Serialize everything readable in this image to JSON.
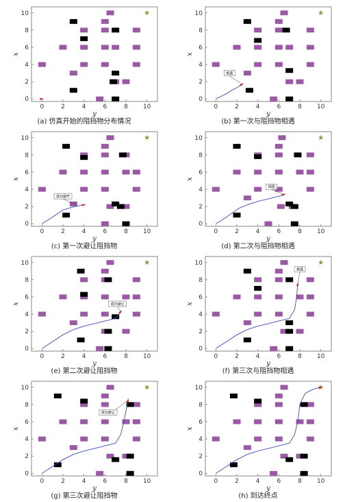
{
  "colors": {
    "obstacle_static": "#9b59a5",
    "obstacle_dynamic": "#000000",
    "path": "#3b4cc0",
    "robot": "#e02020",
    "goal": "#7fa63a"
  },
  "chart_data": [
    {
      "type": "scatter",
      "caption": "(a) 仿真开始的阻挡物分布情况",
      "xlabel": "y",
      "ylabel": "x",
      "xlim": [
        -1,
        11
      ],
      "ylim": [
        -0.3,
        10.7
      ],
      "xticks": [
        0,
        2,
        4,
        6,
        8,
        10
      ],
      "yticks": [
        0,
        2,
        4,
        6,
        8,
        10
      ],
      "start": [
        0,
        0
      ],
      "goal": [
        10,
        10
      ],
      "static_obstacles": [
        [
          0,
          4
        ],
        [
          2,
          6
        ],
        [
          3,
          3
        ],
        [
          4,
          8
        ],
        [
          4,
          6
        ],
        [
          4,
          4
        ],
        [
          6,
          9
        ],
        [
          6,
          8
        ],
        [
          6,
          6
        ],
        [
          6,
          4
        ],
        [
          6.5,
          10
        ],
        [
          7,
          6
        ],
        [
          8,
          2
        ],
        [
          9,
          8
        ],
        [
          9,
          6
        ],
        [
          9,
          4
        ],
        [
          7,
          2
        ],
        [
          5.5,
          0
        ]
      ],
      "dynamic_obstacles": [
        [
          3,
          9
        ],
        [
          4,
          7
        ],
        [
          3,
          1
        ],
        [
          7,
          8
        ],
        [
          7,
          3
        ],
        [
          6.8,
          2
        ],
        [
          7,
          0
        ]
      ],
      "path": [
        [
          0,
          0
        ]
      ],
      "annotation": null
    },
    {
      "type": "scatter",
      "caption": "(b) 第一次与阻挡物相遇",
      "xlabel": "y",
      "ylabel": "x",
      "xlim": [
        -1,
        11
      ],
      "ylim": [
        -0.3,
        10.7
      ],
      "xticks": [
        0,
        2,
        4,
        6,
        8,
        10
      ],
      "yticks": [
        0,
        2,
        4,
        6,
        8,
        10
      ],
      "start": [
        0,
        0
      ],
      "goal": [
        10,
        10
      ],
      "static_obstacles": [
        [
          0,
          4
        ],
        [
          2,
          6
        ],
        [
          3,
          3
        ],
        [
          4,
          8
        ],
        [
          4,
          6
        ],
        [
          4,
          4
        ],
        [
          6,
          9
        ],
        [
          6,
          8
        ],
        [
          6,
          6
        ],
        [
          6,
          4
        ],
        [
          6.5,
          10
        ],
        [
          7,
          6
        ],
        [
          7,
          2
        ],
        [
          8,
          2
        ],
        [
          9,
          8
        ],
        [
          9,
          6
        ],
        [
          9,
          4
        ],
        [
          5.5,
          0
        ]
      ],
      "dynamic_obstacles": [
        [
          3,
          9
        ],
        [
          4,
          6.8
        ],
        [
          3.2,
          1
        ],
        [
          6.7,
          8
        ],
        [
          7,
          3.3
        ],
        [
          7,
          0
        ]
      ],
      "path": [
        [
          0,
          0
        ],
        [
          0.5,
          0.3
        ],
        [
          1,
          0.6
        ],
        [
          1.5,
          1
        ],
        [
          2,
          1.3
        ],
        [
          2.5,
          1.7
        ]
      ],
      "annotation": {
        "text": "相遇",
        "at": [
          2.5,
          1.7
        ],
        "box": [
          1.3,
          3
        ]
      }
    },
    {
      "type": "scatter",
      "caption": "(c) 第一次避让阻挡物",
      "xlabel": "y",
      "ylabel": "x",
      "xlim": [
        -1,
        11
      ],
      "ylim": [
        -0.3,
        10.7
      ],
      "xticks": [
        0,
        2,
        4,
        6,
        8,
        10
      ],
      "yticks": [
        0,
        2,
        4,
        6,
        8,
        10
      ],
      "start": [
        0,
        0
      ],
      "goal": [
        10,
        10
      ],
      "static_obstacles": [
        [
          0,
          4
        ],
        [
          2,
          6
        ],
        [
          3,
          2.3
        ],
        [
          4,
          8
        ],
        [
          4,
          6
        ],
        [
          4,
          4
        ],
        [
          6,
          9
        ],
        [
          6,
          8
        ],
        [
          6,
          6
        ],
        [
          6,
          4
        ],
        [
          6.5,
          10
        ],
        [
          8,
          6
        ],
        [
          8,
          8
        ],
        [
          9,
          6
        ],
        [
          9,
          4
        ],
        [
          6.5,
          2
        ],
        [
          8,
          2
        ],
        [
          6,
          0
        ]
      ],
      "dynamic_obstacles": [
        [
          2.3,
          9
        ],
        [
          4,
          7.7
        ],
        [
          2.3,
          1
        ],
        [
          7.7,
          8
        ],
        [
          7,
          2.3
        ],
        [
          7.5,
          2
        ],
        [
          8,
          0
        ]
      ],
      "path": [
        [
          0,
          0
        ],
        [
          0.8,
          0.6
        ],
        [
          1.5,
          1.2
        ],
        [
          2,
          1.6
        ],
        [
          2.8,
          1.9
        ],
        [
          3.5,
          2.1
        ],
        [
          4,
          2.2
        ]
      ],
      "annotation": {
        "text": "成功避开",
        "at": [
          3.3,
          2.2
        ],
        "box": [
          2,
          3.2
        ]
      }
    },
    {
      "type": "scatter",
      "caption": "(d) 第二次与阻挡物相遇",
      "xlabel": "y",
      "ylabel": "x",
      "xlim": [
        -1,
        11
      ],
      "ylim": [
        -0.3,
        10.7
      ],
      "xticks": [
        0,
        2,
        4,
        6,
        8,
        10
      ],
      "yticks": [
        0,
        2,
        4,
        6,
        8,
        10
      ],
      "start": [
        0,
        0
      ],
      "goal": [
        10,
        10
      ],
      "static_obstacles": [
        [
          0,
          4
        ],
        [
          2,
          6
        ],
        [
          3,
          3
        ],
        [
          4,
          8
        ],
        [
          4,
          6
        ],
        [
          4,
          4
        ],
        [
          6,
          9
        ],
        [
          6,
          8
        ],
        [
          6,
          6
        ],
        [
          6,
          4
        ],
        [
          6.3,
          10
        ],
        [
          8,
          6
        ],
        [
          9,
          8
        ],
        [
          9,
          6
        ],
        [
          9,
          4
        ],
        [
          6.2,
          2
        ],
        [
          7.3,
          2
        ],
        [
          5,
          0
        ]
      ],
      "dynamic_obstacles": [
        [
          2,
          9
        ],
        [
          4,
          7.8
        ],
        [
          2,
          1
        ],
        [
          7.8,
          8
        ],
        [
          7,
          2.3
        ],
        [
          7.5,
          2
        ],
        [
          7.5,
          0
        ]
      ],
      "path": [
        [
          0,
          0
        ],
        [
          0.8,
          0.6
        ],
        [
          1.5,
          1.2
        ],
        [
          2.2,
          1.8
        ],
        [
          3,
          2.2
        ],
        [
          4,
          2.6
        ],
        [
          5,
          2.9
        ],
        [
          6,
          3.2
        ],
        [
          6.5,
          3.4
        ]
      ],
      "annotation": {
        "text": "相遇",
        "at": [
          6.5,
          3.4
        ],
        "box": [
          5.3,
          4.3
        ]
      }
    },
    {
      "type": "scatter",
      "caption": "(e) 第二次避让阻挡物",
      "xlabel": "y",
      "ylabel": "x",
      "xlim": [
        -1,
        11
      ],
      "ylim": [
        -0.3,
        10.7
      ],
      "xticks": [
        0,
        2,
        4,
        6,
        8,
        10
      ],
      "yticks": [
        0,
        2,
        4,
        6,
        8,
        10
      ],
      "start": [
        0,
        0
      ],
      "goal": [
        10,
        10
      ],
      "static_obstacles": [
        [
          0,
          4
        ],
        [
          2,
          6
        ],
        [
          3,
          3
        ],
        [
          4,
          8
        ],
        [
          4,
          6
        ],
        [
          4,
          4
        ],
        [
          6,
          9
        ],
        [
          6,
          8
        ],
        [
          6,
          6
        ],
        [
          6,
          4
        ],
        [
          6.5,
          10
        ],
        [
          8,
          6
        ],
        [
          9,
          8
        ],
        [
          9,
          6
        ],
        [
          9,
          4
        ],
        [
          6,
          2
        ],
        [
          8,
          2
        ],
        [
          5.5,
          0
        ]
      ],
      "dynamic_obstacles": [
        [
          3.7,
          9
        ],
        [
          4,
          6.3
        ],
        [
          3.7,
          1
        ],
        [
          6.3,
          8
        ],
        [
          7,
          3.7
        ],
        [
          6.3,
          2
        ],
        [
          6.3,
          0
        ]
      ],
      "path": [
        [
          0,
          0
        ],
        [
          1,
          0.8
        ],
        [
          2,
          1.6
        ],
        [
          3,
          2.2
        ],
        [
          4,
          2.6
        ],
        [
          5,
          2.9
        ],
        [
          6,
          3.2
        ],
        [
          7,
          3.5
        ],
        [
          7.5,
          4.3
        ]
      ],
      "annotation": {
        "text": "成功避让",
        "at": [
          7.5,
          4.3
        ],
        "box": [
          7.2,
          5.2
        ]
      }
    },
    {
      "type": "scatter",
      "caption": "(f) 第三次与阻挡物相遇",
      "xlabel": "y",
      "ylabel": "x",
      "xlim": [
        -1,
        11
      ],
      "ylim": [
        -0.3,
        10.7
      ],
      "xticks": [
        0,
        2,
        4,
        6,
        8,
        10
      ],
      "yticks": [
        0,
        2,
        4,
        6,
        8,
        10
      ],
      "start": [
        0,
        0
      ],
      "goal": [
        10,
        10
      ],
      "static_obstacles": [
        [
          0,
          4
        ],
        [
          2,
          6
        ],
        [
          3,
          3
        ],
        [
          4,
          8
        ],
        [
          4,
          6
        ],
        [
          4,
          4
        ],
        [
          6,
          9
        ],
        [
          6,
          8
        ],
        [
          6,
          6
        ],
        [
          6,
          4
        ],
        [
          6.5,
          10
        ],
        [
          8,
          6
        ],
        [
          9,
          8
        ],
        [
          9,
          6
        ],
        [
          9,
          4
        ],
        [
          5.5,
          0
        ],
        [
          6.5,
          2
        ],
        [
          8,
          2
        ]
      ],
      "dynamic_obstacles": [
        [
          3,
          9
        ],
        [
          4,
          7
        ],
        [
          3,
          1
        ],
        [
          7,
          8
        ],
        [
          7,
          3
        ],
        [
          7,
          2
        ],
        [
          7,
          0
        ]
      ],
      "path": [
        [
          0,
          0
        ],
        [
          1,
          0.8
        ],
        [
          2,
          1.6
        ],
        [
          3,
          2.2
        ],
        [
          4,
          2.6
        ],
        [
          5,
          2.9
        ],
        [
          6,
          3.2
        ],
        [
          7,
          3.5
        ],
        [
          7.5,
          4.5
        ],
        [
          7.7,
          6
        ],
        [
          7.8,
          7.5
        ]
      ],
      "annotation": {
        "text": "相遇",
        "at": [
          7.8,
          7.5
        ],
        "box": [
          8,
          9.2
        ]
      }
    },
    {
      "type": "scatter",
      "caption": "(g) 第三次避让阻挡物",
      "xlabel": "y",
      "ylabel": "x",
      "xlim": [
        -1,
        11
      ],
      "ylim": [
        -0.3,
        10.7
      ],
      "xticks": [
        0,
        2,
        4,
        6,
        8,
        10
      ],
      "yticks": [
        0,
        2,
        4,
        6,
        8,
        10
      ],
      "start": [
        0,
        0
      ],
      "goal": [
        10,
        10
      ],
      "static_obstacles": [
        [
          0,
          4
        ],
        [
          2,
          6
        ],
        [
          3,
          3
        ],
        [
          4,
          8
        ],
        [
          4,
          6
        ],
        [
          4,
          4
        ],
        [
          6,
          9
        ],
        [
          6,
          8
        ],
        [
          6,
          6
        ],
        [
          6,
          4
        ],
        [
          6.5,
          10
        ],
        [
          8,
          6
        ],
        [
          9,
          8
        ],
        [
          9,
          6
        ],
        [
          9,
          4
        ],
        [
          5.5,
          0
        ],
        [
          6.5,
          2
        ],
        [
          8,
          2
        ]
      ],
      "dynamic_obstacles": [
        [
          1.5,
          9
        ],
        [
          4,
          8.4
        ],
        [
          1.5,
          1
        ],
        [
          8.4,
          8
        ],
        [
          7,
          1.6
        ],
        [
          8.4,
          2
        ],
        [
          8.4,
          0
        ]
      ],
      "path": [
        [
          0,
          0
        ],
        [
          1,
          0.8
        ],
        [
          2,
          1.6
        ],
        [
          3,
          2.2
        ],
        [
          4,
          2.6
        ],
        [
          5,
          2.9
        ],
        [
          6,
          3.2
        ],
        [
          7,
          3.5
        ],
        [
          7.5,
          4.5
        ],
        [
          7.8,
          6
        ],
        [
          8.2,
          8.5
        ]
      ],
      "annotation": {
        "text": "成功避让",
        "at": [
          8.2,
          8.5
        ],
        "box": [
          6.3,
          7.1
        ]
      }
    },
    {
      "type": "scatter",
      "caption": "(h) 到达终点",
      "xlabel": "y",
      "ylabel": "x",
      "xlim": [
        -1,
        11
      ],
      "ylim": [
        -0.3,
        10.7
      ],
      "xticks": [
        0,
        2,
        4,
        6,
        8,
        10
      ],
      "yticks": [
        0,
        2,
        4,
        6,
        8,
        10
      ],
      "start": [
        0,
        0
      ],
      "goal": [
        10,
        10
      ],
      "static_obstacles": [
        [
          0,
          4
        ],
        [
          2,
          6
        ],
        [
          3,
          3
        ],
        [
          4,
          8
        ],
        [
          4,
          6
        ],
        [
          4,
          4
        ],
        [
          6,
          9
        ],
        [
          6,
          8
        ],
        [
          6,
          6
        ],
        [
          6,
          4
        ],
        [
          6.5,
          10
        ],
        [
          8,
          6
        ],
        [
          9,
          8
        ],
        [
          9,
          6
        ],
        [
          9,
          4
        ],
        [
          5.5,
          0
        ],
        [
          6.5,
          2
        ],
        [
          8,
          2
        ]
      ],
      "dynamic_obstacles": [
        [
          1.7,
          9
        ],
        [
          4,
          8.4
        ],
        [
          1.7,
          1
        ],
        [
          8.4,
          8
        ],
        [
          7,
          1.6
        ],
        [
          8.4,
          2
        ],
        [
          8.4,
          0
        ]
      ],
      "path": [
        [
          0,
          0
        ],
        [
          1,
          0.8
        ],
        [
          2,
          1.6
        ],
        [
          3,
          2.2
        ],
        [
          4,
          2.6
        ],
        [
          5,
          2.9
        ],
        [
          6,
          3.2
        ],
        [
          7,
          3.5
        ],
        [
          7.5,
          4.5
        ],
        [
          7.8,
          6
        ],
        [
          8,
          8
        ],
        [
          8.5,
          9.3
        ],
        [
          9.3,
          9.8
        ],
        [
          10,
          10
        ]
      ],
      "annotation": null
    }
  ]
}
